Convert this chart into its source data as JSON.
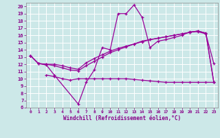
{
  "xlabel": "Windchill (Refroidissement éolien,°C)",
  "bg_color": "#cce8e8",
  "grid_color": "#ffffff",
  "line_color": "#990099",
  "xlim": [
    -0.5,
    23.5
  ],
  "ylim": [
    6,
    20.5
  ],
  "xticks": [
    0,
    1,
    2,
    3,
    4,
    5,
    6,
    7,
    8,
    9,
    10,
    11,
    12,
    13,
    14,
    15,
    16,
    17,
    18,
    19,
    20,
    21,
    22,
    23
  ],
  "yticks": [
    6,
    7,
    8,
    9,
    10,
    11,
    12,
    13,
    14,
    15,
    16,
    17,
    18,
    19,
    20
  ],
  "line1_x": [
    0,
    1,
    2,
    3,
    6,
    7,
    8,
    9,
    10,
    11,
    12,
    13,
    14,
    15,
    16,
    17,
    18,
    19,
    20,
    21,
    22,
    23
  ],
  "line1_y": [
    13.2,
    12.1,
    11.9,
    10.5,
    6.5,
    9.5,
    11.2,
    14.3,
    14.0,
    19.0,
    19.0,
    20.2,
    18.5,
    14.3,
    15.2,
    15.4,
    15.7,
    16.0,
    16.5,
    16.5,
    16.2,
    12.1
  ],
  "line2_x": [
    0,
    1,
    2,
    3,
    4,
    5,
    6,
    7,
    8,
    9,
    10,
    11,
    12,
    13,
    14,
    15,
    16,
    17,
    18,
    19,
    20,
    21,
    22,
    23
  ],
  "line2_y": [
    13.2,
    12.1,
    12.0,
    12.0,
    11.8,
    11.5,
    11.3,
    12.2,
    12.8,
    13.3,
    13.8,
    14.2,
    14.5,
    14.8,
    15.2,
    15.4,
    15.6,
    15.8,
    16.0,
    16.2,
    16.4,
    16.6,
    16.3,
    9.5
  ],
  "line3_x": [
    0,
    1,
    2,
    3,
    4,
    5,
    6,
    7,
    8,
    9,
    10,
    11,
    12,
    13,
    14,
    15,
    16,
    17,
    18,
    19,
    20,
    21,
    22,
    23
  ],
  "line3_y": [
    13.2,
    12.1,
    12.0,
    11.8,
    11.5,
    11.2,
    11.1,
    11.8,
    12.4,
    13.0,
    13.6,
    14.0,
    14.4,
    14.8,
    15.1,
    15.4,
    15.6,
    15.8,
    16.0,
    16.2,
    16.4,
    16.6,
    16.3,
    9.5
  ],
  "line4_x": [
    2,
    3,
    4,
    5,
    6,
    7,
    8,
    9,
    10,
    11,
    12,
    13,
    14,
    15,
    16,
    17,
    18,
    19,
    20,
    21,
    22,
    23
  ],
  "line4_y": [
    10.5,
    10.3,
    10.0,
    9.8,
    10.0,
    10.0,
    10.0,
    10.0,
    10.0,
    10.0,
    10.0,
    9.9,
    9.8,
    9.7,
    9.6,
    9.5,
    9.5,
    9.5,
    9.5,
    9.5,
    9.5,
    9.5
  ]
}
